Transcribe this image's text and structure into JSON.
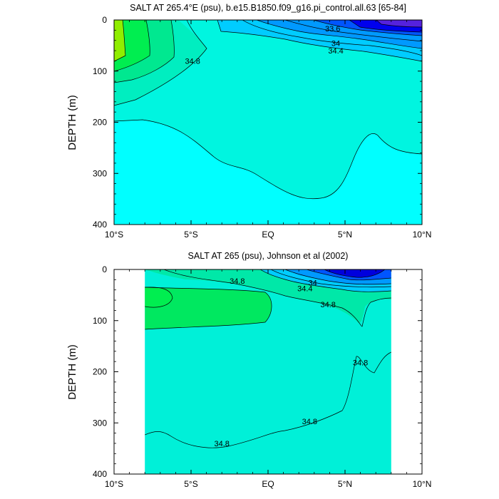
{
  "chart_data": [
    {
      "type": "contour",
      "title": "SALT AT 265.4°E (psu), b.e15.B1850.f09_g16.pi_control.all.63 [65-84]",
      "xlabel": "",
      "ylabel": "DEPTH (m)",
      "xlim": [
        -10,
        10
      ],
      "ylim": [
        400,
        0
      ],
      "x_ticks": [
        -10,
        -5,
        0,
        5,
        10
      ],
      "x_tick_labels": [
        "10°S",
        "5°S",
        "EQ",
        "5°N",
        "10°N"
      ],
      "y_ticks": [
        0,
        100,
        200,
        300,
        400
      ],
      "y_tick_labels": [
        "0",
        "100",
        "200",
        "300",
        "400"
      ],
      "data_extent_x": [
        -10,
        10
      ],
      "colors": {
        "deep": "#00ffff",
        "mid": "#00f5e0",
        "upper": "#00eec0",
        "high": "#00e890",
        "green": "#00ee50",
        "lime": "#90ee00",
        "fresh1": "#00ccff",
        "fresh2": "#0099ff",
        "fresh3": "#0055ff",
        "fresh4": "#0000ee",
        "fresh5": "#5522dd"
      },
      "contour_labels": [
        {
          "text": "34.8",
          "x": -4.9,
          "y": 80
        },
        {
          "text": "33.6",
          "x": 4.2,
          "y": 17
        },
        {
          "text": "34",
          "x": 4.4,
          "y": 45
        },
        {
          "text": "34.4",
          "x": 4.4,
          "y": 60
        }
      ]
    },
    {
      "type": "contour",
      "title": "SALT AT 265 (psu), Johnson et al (2002)",
      "xlabel": "",
      "ylabel": "DEPTH (m)",
      "xlim": [
        -10,
        10
      ],
      "ylim": [
        400,
        0
      ],
      "x_ticks": [
        -10,
        -5,
        0,
        5,
        10
      ],
      "x_tick_labels": [
        "10°S",
        "5°S",
        "EQ",
        "5°N",
        "10°N"
      ],
      "y_ticks": [
        0,
        100,
        200,
        300,
        400
      ],
      "y_tick_labels": [
        "0",
        "100",
        "200",
        "300",
        "400"
      ],
      "data_extent_x": [
        -8,
        8
      ],
      "colors": {
        "deep": "#00f0d8",
        "upper": "#00e8a8",
        "green": "#00e860",
        "fresh1": "#00ccff",
        "fresh2": "#0099ff",
        "fresh3": "#0055ff",
        "fresh4": "#0000dd"
      },
      "contour_labels": [
        {
          "text": "34.8",
          "x": -2.0,
          "y": 22
        },
        {
          "text": "34",
          "x": 2.9,
          "y": 26
        },
        {
          "text": "34.4",
          "x": 2.4,
          "y": 37
        },
        {
          "text": "34.8",
          "x": 3.9,
          "y": 68
        },
        {
          "text": "34.8",
          "x": 6.0,
          "y": 182
        },
        {
          "text": "34.8",
          "x": 2.7,
          "y": 297
        },
        {
          "text": "34.8",
          "x": -3.0,
          "y": 340
        }
      ]
    }
  ]
}
